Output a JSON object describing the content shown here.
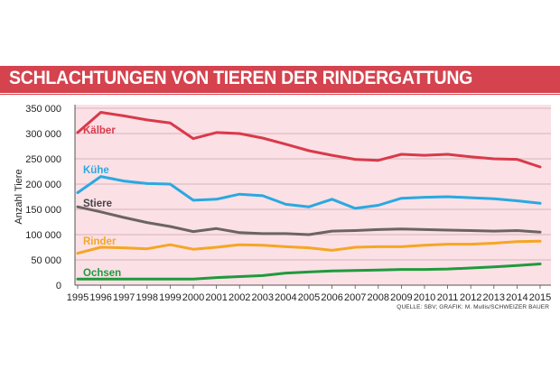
{
  "title": "SCHLACHTUNGEN VON TIEREN DER RINDERGATTUNG",
  "source": "QUELLE: SBV; GRAFIK: M. Mullis/SCHWEIZER BAUER",
  "chart_data": {
    "type": "line",
    "title": "SCHLACHTUNGEN VON TIEREN DER RINDERGATTUNG",
    "xlabel": "",
    "ylabel": "Anzahl Tiere",
    "ylim": [
      0,
      350000
    ],
    "yticks": [
      0,
      50000,
      100000,
      150000,
      200000,
      250000,
      300000,
      350000
    ],
    "ytick_labels": [
      "0",
      "50 000",
      "100 000",
      "150 000",
      "200 000",
      "250 000",
      "300 000",
      "350 000"
    ],
    "x": [
      "1995",
      "1996",
      "1997",
      "1998",
      "1999",
      "2000",
      "2001",
      "2002",
      "2003",
      "2004",
      "2005",
      "2006",
      "2007",
      "2008",
      "2009",
      "2010",
      "2011",
      "2012",
      "2013",
      "2014",
      "2015"
    ],
    "grid": true,
    "background": "#fbe0e6",
    "series": [
      {
        "name": "Kälber",
        "color": "#d93a4a",
        "values": [
          302000,
          342000,
          335000,
          327000,
          321000,
          290000,
          302000,
          300000,
          291000,
          279000,
          266000,
          257000,
          249000,
          247000,
          259000,
          257000,
          259000,
          254000,
          250000,
          249000,
          234000
        ]
      },
      {
        "name": "Kühe",
        "color": "#29a9e0",
        "values": [
          183000,
          215000,
          206000,
          201000,
          200000,
          168000,
          170000,
          180000,
          177000,
          160000,
          155000,
          170000,
          152000,
          158000,
          172000,
          174000,
          175000,
          173000,
          171000,
          167000,
          162000
        ]
      },
      {
        "name": "Stiere",
        "color": "#6b6464",
        "values": [
          155000,
          145000,
          134000,
          124000,
          116000,
          106000,
          112000,
          104000,
          102000,
          102000,
          100000,
          107000,
          108000,
          110000,
          111000,
          110000,
          109000,
          108000,
          107000,
          108000,
          105000
        ]
      },
      {
        "name": "Rinder",
        "color": "#f5a623",
        "values": [
          63000,
          75000,
          74000,
          72000,
          80000,
          71000,
          75000,
          80000,
          79000,
          76000,
          74000,
          69000,
          75000,
          76000,
          76000,
          79000,
          81000,
          81000,
          83000,
          86000,
          87000
        ]
      },
      {
        "name": "Ochsen",
        "color": "#1f9a3c",
        "values": [
          12000,
          12000,
          12000,
          12000,
          12000,
          12000,
          15000,
          17000,
          19000,
          24000,
          26000,
          28000,
          29000,
          30000,
          31000,
          31000,
          32000,
          34000,
          36000,
          39000,
          42000
        ]
      }
    ]
  }
}
